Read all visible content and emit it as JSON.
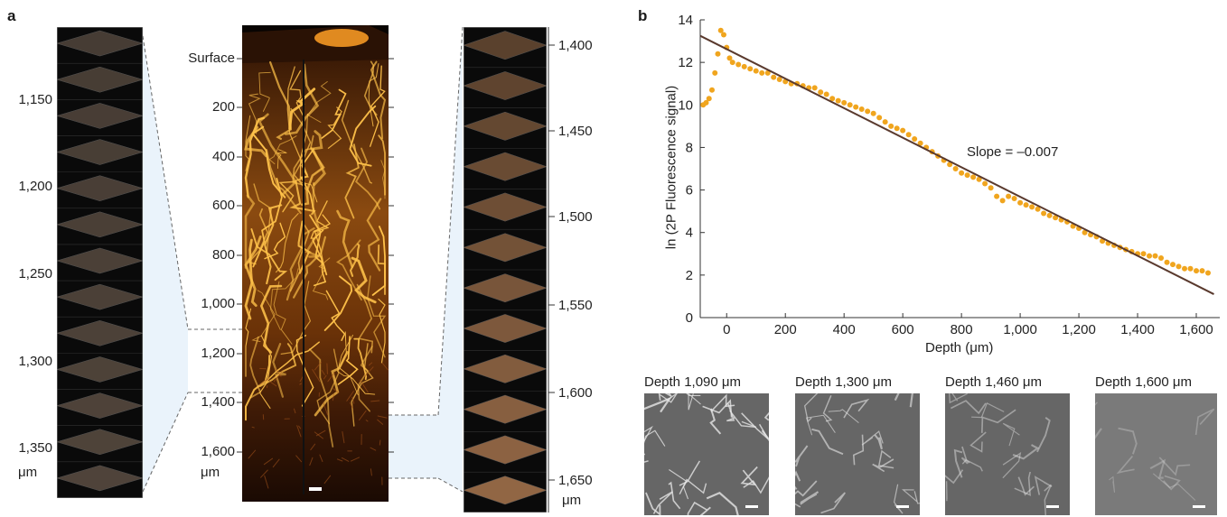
{
  "panel_a": {
    "letter": "a",
    "left_stack_ticks": [
      "1,150",
      "1,200",
      "1,250",
      "1,300",
      "1,350"
    ],
    "left_stack_unit": "μm",
    "center_ticks": [
      "Surface",
      "200",
      "400",
      "600",
      "800",
      "1,000",
      "1,200",
      "1,400",
      "1,600"
    ],
    "center_unit": "μm",
    "right_stack_ticks": [
      "1,400",
      "1,450",
      "1,500",
      "1,550",
      "1,600",
      "1,650"
    ],
    "right_stack_unit": "μm"
  },
  "panel_b": {
    "letter": "b",
    "insets": [
      {
        "caption": "Depth 1,090 μm"
      },
      {
        "caption": "Depth 1,300 μm"
      },
      {
        "caption": "Depth 1,460 μm"
      },
      {
        "caption": "Depth 1,600 μm"
      }
    ]
  },
  "chart_data": {
    "type": "scatter",
    "xlabel": "Depth (μm)",
    "ylabel": "ln (2P Fluorescence signal)",
    "xlim": [
      -90,
      1680
    ],
    "ylim": [
      0,
      14
    ],
    "x_ticks": [
      "0",
      "200",
      "400",
      "600",
      "800",
      "1,000",
      "1,200",
      "1,400",
      "1,600"
    ],
    "x_tick_values": [
      0,
      200,
      400,
      600,
      800,
      1000,
      1200,
      1400,
      1600
    ],
    "y_ticks": [
      "0",
      "2",
      "4",
      "6",
      "8",
      "10",
      "12",
      "14"
    ],
    "y_tick_values": [
      0,
      2,
      4,
      6,
      8,
      10,
      12,
      14
    ],
    "annotation": "Slope = –0.007",
    "marker_color": "#f0a51e",
    "fit_color": "#5a3a2e",
    "fit_line": {
      "x": [
        -90,
        1660
      ],
      "y": [
        13.25,
        1.1
      ]
    },
    "series": [
      {
        "x": [
          -80,
          -70,
          -60,
          -50,
          -40,
          -30,
          -20,
          -10,
          0,
          10,
          20,
          40,
          60,
          80,
          100,
          120,
          140,
          160,
          180,
          200,
          220,
          240,
          260,
          280,
          300,
          320,
          340,
          360,
          380,
          400,
          420,
          440,
          460,
          480,
          500,
          520,
          540,
          560,
          580,
          600,
          620,
          640,
          660,
          680,
          700,
          720,
          740,
          760,
          780,
          800,
          820,
          840,
          860,
          880,
          900,
          920,
          940,
          960,
          980,
          1000,
          1020,
          1040,
          1060,
          1080,
          1100,
          1120,
          1140,
          1160,
          1180,
          1200,
          1220,
          1240,
          1260,
          1280,
          1300,
          1320,
          1340,
          1360,
          1380,
          1400,
          1420,
          1440,
          1460,
          1480,
          1500,
          1520,
          1540,
          1560,
          1580,
          1600,
          1620,
          1640
        ],
        "y": [
          10.0,
          10.1,
          10.3,
          10.7,
          11.5,
          12.4,
          13.5,
          13.3,
          12.7,
          12.2,
          12.0,
          11.9,
          11.8,
          11.7,
          11.6,
          11.5,
          11.5,
          11.3,
          11.2,
          11.1,
          11.0,
          11.0,
          10.9,
          10.8,
          10.8,
          10.6,
          10.5,
          10.3,
          10.2,
          10.1,
          10.0,
          9.9,
          9.8,
          9.7,
          9.6,
          9.4,
          9.2,
          9.0,
          8.9,
          8.8,
          8.6,
          8.4,
          8.2,
          8.0,
          7.8,
          7.6,
          7.4,
          7.2,
          7.0,
          6.8,
          6.7,
          6.6,
          6.5,
          6.3,
          6.1,
          5.7,
          5.5,
          5.7,
          5.6,
          5.4,
          5.3,
          5.2,
          5.1,
          4.9,
          4.8,
          4.7,
          4.6,
          4.5,
          4.3,
          4.2,
          4.0,
          3.9,
          3.8,
          3.6,
          3.5,
          3.4,
          3.3,
          3.2,
          3.1,
          3.0,
          3.0,
          2.9,
          2.9,
          2.8,
          2.6,
          2.5,
          2.4,
          2.3,
          2.3,
          2.2,
          2.2,
          2.1
        ]
      }
    ]
  }
}
